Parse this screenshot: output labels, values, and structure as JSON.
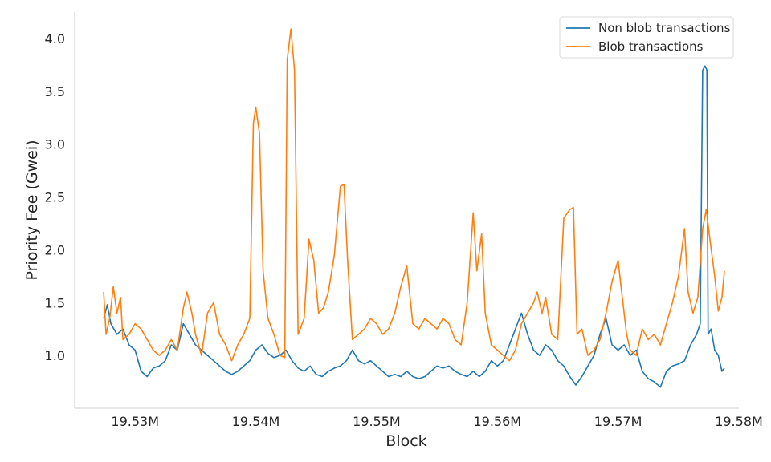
{
  "chart_data": {
    "type": "line",
    "xlabel": "Block",
    "ylabel": "Priority Fee (Gwei)",
    "xlim": [
      19525000,
      19580000
    ],
    "ylim": [
      0.5,
      4.25
    ],
    "xticks": [
      19530000,
      19540000,
      19550000,
      19560000,
      19570000,
      19580000
    ],
    "xtick_labels": [
      "19.53M",
      "19.54M",
      "19.55M",
      "19.56M",
      "19.57M",
      "19.58M"
    ],
    "yticks": [
      1.0,
      1.5,
      2.0,
      2.5,
      3.0,
      3.5,
      4.0
    ],
    "ytick_labels": [
      "1.0",
      "1.5",
      "2.0",
      "2.5",
      "3.0",
      "3.5",
      "4.0"
    ],
    "grid": false,
    "legend": "top-right",
    "series": [
      {
        "name": "Non blob transactions",
        "color": "#1f77b4",
        "points": [
          [
            19527400,
            1.35
          ],
          [
            19527700,
            1.48
          ],
          [
            19528000,
            1.3
          ],
          [
            19528500,
            1.2
          ],
          [
            19529000,
            1.25
          ],
          [
            19529500,
            1.1
          ],
          [
            19530000,
            1.05
          ],
          [
            19530500,
            0.85
          ],
          [
            19531000,
            0.8
          ],
          [
            19531500,
            0.88
          ],
          [
            19532000,
            0.9
          ],
          [
            19532500,
            0.95
          ],
          [
            19533000,
            1.1
          ],
          [
            19533500,
            1.05
          ],
          [
            19534000,
            1.3
          ],
          [
            19534500,
            1.2
          ],
          [
            19535000,
            1.1
          ],
          [
            19535500,
            1.05
          ],
          [
            19536000,
            1.0
          ],
          [
            19536500,
            0.95
          ],
          [
            19537000,
            0.9
          ],
          [
            19537500,
            0.85
          ],
          [
            19538000,
            0.82
          ],
          [
            19538500,
            0.85
          ],
          [
            19539000,
            0.9
          ],
          [
            19539500,
            0.95
          ],
          [
            19540000,
            1.05
          ],
          [
            19540500,
            1.1
          ],
          [
            19541000,
            1.02
          ],
          [
            19541500,
            0.98
          ],
          [
            19542000,
            1.0
          ],
          [
            19542500,
            1.05
          ],
          [
            19543000,
            0.95
          ],
          [
            19543500,
            0.88
          ],
          [
            19544000,
            0.85
          ],
          [
            19544500,
            0.9
          ],
          [
            19545000,
            0.82
          ],
          [
            19545500,
            0.8
          ],
          [
            19546000,
            0.85
          ],
          [
            19546500,
            0.88
          ],
          [
            19547000,
            0.9
          ],
          [
            19547500,
            0.95
          ],
          [
            19548000,
            1.05
          ],
          [
            19548500,
            0.95
          ],
          [
            19549000,
            0.92
          ],
          [
            19549500,
            0.95
          ],
          [
            19550000,
            0.9
          ],
          [
            19550500,
            0.85
          ],
          [
            19551000,
            0.8
          ],
          [
            19551500,
            0.82
          ],
          [
            19552000,
            0.8
          ],
          [
            19552500,
            0.85
          ],
          [
            19553000,
            0.8
          ],
          [
            19553500,
            0.78
          ],
          [
            19554000,
            0.8
          ],
          [
            19554500,
            0.85
          ],
          [
            19555000,
            0.9
          ],
          [
            19555500,
            0.88
          ],
          [
            19556000,
            0.9
          ],
          [
            19556500,
            0.85
          ],
          [
            19557000,
            0.82
          ],
          [
            19557500,
            0.8
          ],
          [
            19558000,
            0.85
          ],
          [
            19558500,
            0.8
          ],
          [
            19559000,
            0.85
          ],
          [
            19559500,
            0.95
          ],
          [
            19560000,
            0.9
          ],
          [
            19560500,
            0.95
          ],
          [
            19561000,
            1.1
          ],
          [
            19561500,
            1.25
          ],
          [
            19562000,
            1.4
          ],
          [
            19562500,
            1.2
          ],
          [
            19563000,
            1.05
          ],
          [
            19563500,
            1.0
          ],
          [
            19564000,
            1.1
          ],
          [
            19564500,
            1.05
          ],
          [
            19565000,
            0.95
          ],
          [
            19565500,
            0.9
          ],
          [
            19566000,
            0.8
          ],
          [
            19566500,
            0.72
          ],
          [
            19567000,
            0.8
          ],
          [
            19567500,
            0.9
          ],
          [
            19568000,
            1.0
          ],
          [
            19568500,
            1.2
          ],
          [
            19569000,
            1.35
          ],
          [
            19569500,
            1.1
          ],
          [
            19570000,
            1.05
          ],
          [
            19570500,
            1.1
          ],
          [
            19571000,
            1.0
          ],
          [
            19571500,
            1.05
          ],
          [
            19572000,
            0.85
          ],
          [
            19572500,
            0.78
          ],
          [
            19573000,
            0.75
          ],
          [
            19573500,
            0.7
          ],
          [
            19574000,
            0.85
          ],
          [
            19574500,
            0.9
          ],
          [
            19575000,
            0.92
          ],
          [
            19575500,
            0.95
          ],
          [
            19576000,
            1.1
          ],
          [
            19576500,
            1.2
          ],
          [
            19576800,
            1.3
          ],
          [
            19577000,
            3.7
          ],
          [
            19577200,
            3.74
          ],
          [
            19577350,
            3.7
          ],
          [
            19577450,
            1.2
          ],
          [
            19577700,
            1.25
          ],
          [
            19578000,
            1.05
          ],
          [
            19578300,
            1.0
          ],
          [
            19578600,
            0.85
          ],
          [
            19578800,
            0.88
          ]
        ]
      },
      {
        "name": "Blob transactions",
        "color": "#ff7f0e",
        "points": [
          [
            19527400,
            1.6
          ],
          [
            19527600,
            1.2
          ],
          [
            19527900,
            1.35
          ],
          [
            19528200,
            1.65
          ],
          [
            19528500,
            1.4
          ],
          [
            19528800,
            1.55
          ],
          [
            19529000,
            1.15
          ],
          [
            19529500,
            1.2
          ],
          [
            19530000,
            1.3
          ],
          [
            19530500,
            1.25
          ],
          [
            19531000,
            1.15
          ],
          [
            19531500,
            1.05
          ],
          [
            19532000,
            1.0
          ],
          [
            19532500,
            1.05
          ],
          [
            19533000,
            1.15
          ],
          [
            19533500,
            1.05
          ],
          [
            19534000,
            1.45
          ],
          [
            19534300,
            1.6
          ],
          [
            19534700,
            1.4
          ],
          [
            19535000,
            1.2
          ],
          [
            19535500,
            1.0
          ],
          [
            19536000,
            1.4
          ],
          [
            19536500,
            1.5
          ],
          [
            19537000,
            1.2
          ],
          [
            19537500,
            1.1
          ],
          [
            19538000,
            0.95
          ],
          [
            19538500,
            1.1
          ],
          [
            19539000,
            1.2
          ],
          [
            19539500,
            1.35
          ],
          [
            19539800,
            3.2
          ],
          [
            19540000,
            3.35
          ],
          [
            19540300,
            3.1
          ],
          [
            19540600,
            1.8
          ],
          [
            19541000,
            1.35
          ],
          [
            19541500,
            1.2
          ],
          [
            19542000,
            1.0
          ],
          [
            19542400,
            0.98
          ],
          [
            19542600,
            3.8
          ],
          [
            19542900,
            4.09
          ],
          [
            19543200,
            3.7
          ],
          [
            19543500,
            1.2
          ],
          [
            19544000,
            1.35
          ],
          [
            19544400,
            2.1
          ],
          [
            19544800,
            1.9
          ],
          [
            19545200,
            1.4
          ],
          [
            19545600,
            1.45
          ],
          [
            19546000,
            1.6
          ],
          [
            19546500,
            1.95
          ],
          [
            19547000,
            2.6
          ],
          [
            19547300,
            2.62
          ],
          [
            19547600,
            1.9
          ],
          [
            19548000,
            1.15
          ],
          [
            19548500,
            1.2
          ],
          [
            19549000,
            1.25
          ],
          [
            19549500,
            1.35
          ],
          [
            19550000,
            1.3
          ],
          [
            19550500,
            1.2
          ],
          [
            19551000,
            1.25
          ],
          [
            19551500,
            1.4
          ],
          [
            19552000,
            1.65
          ],
          [
            19552500,
            1.85
          ],
          [
            19553000,
            1.3
          ],
          [
            19553500,
            1.25
          ],
          [
            19554000,
            1.35
          ],
          [
            19554500,
            1.3
          ],
          [
            19555000,
            1.25
          ],
          [
            19555500,
            1.35
          ],
          [
            19556000,
            1.3
          ],
          [
            19556500,
            1.15
          ],
          [
            19557000,
            1.1
          ],
          [
            19557500,
            1.5
          ],
          [
            19558000,
            2.35
          ],
          [
            19558300,
            1.8
          ],
          [
            19558700,
            2.15
          ],
          [
            19559000,
            1.4
          ],
          [
            19559500,
            1.1
          ],
          [
            19560000,
            1.05
          ],
          [
            19560500,
            1.0
          ],
          [
            19561000,
            0.95
          ],
          [
            19561500,
            1.05
          ],
          [
            19562000,
            1.3
          ],
          [
            19562500,
            1.4
          ],
          [
            19563000,
            1.5
          ],
          [
            19563300,
            1.6
          ],
          [
            19563700,
            1.4
          ],
          [
            19564000,
            1.55
          ],
          [
            19564500,
            1.2
          ],
          [
            19565000,
            1.15
          ],
          [
            19565500,
            2.3
          ],
          [
            19566000,
            2.38
          ],
          [
            19566300,
            2.4
          ],
          [
            19566600,
            1.2
          ],
          [
            19567000,
            1.25
          ],
          [
            19567500,
            1.0
          ],
          [
            19568000,
            1.05
          ],
          [
            19568500,
            1.15
          ],
          [
            19569000,
            1.4
          ],
          [
            19569500,
            1.7
          ],
          [
            19570000,
            1.9
          ],
          [
            19570300,
            1.6
          ],
          [
            19570700,
            1.2
          ],
          [
            19571000,
            1.05
          ],
          [
            19571500,
            1.0
          ],
          [
            19572000,
            1.25
          ],
          [
            19572500,
            1.15
          ],
          [
            19573000,
            1.2
          ],
          [
            19573500,
            1.1
          ],
          [
            19574000,
            1.3
          ],
          [
            19574500,
            1.5
          ],
          [
            19575000,
            1.75
          ],
          [
            19575500,
            2.2
          ],
          [
            19575800,
            1.6
          ],
          [
            19576200,
            1.4
          ],
          [
            19576600,
            1.55
          ],
          [
            19577000,
            2.2
          ],
          [
            19577300,
            2.38
          ],
          [
            19577600,
            2.1
          ],
          [
            19578000,
            1.75
          ],
          [
            19578300,
            1.42
          ],
          [
            19578600,
            1.55
          ],
          [
            19578800,
            1.8
          ]
        ]
      }
    ]
  }
}
